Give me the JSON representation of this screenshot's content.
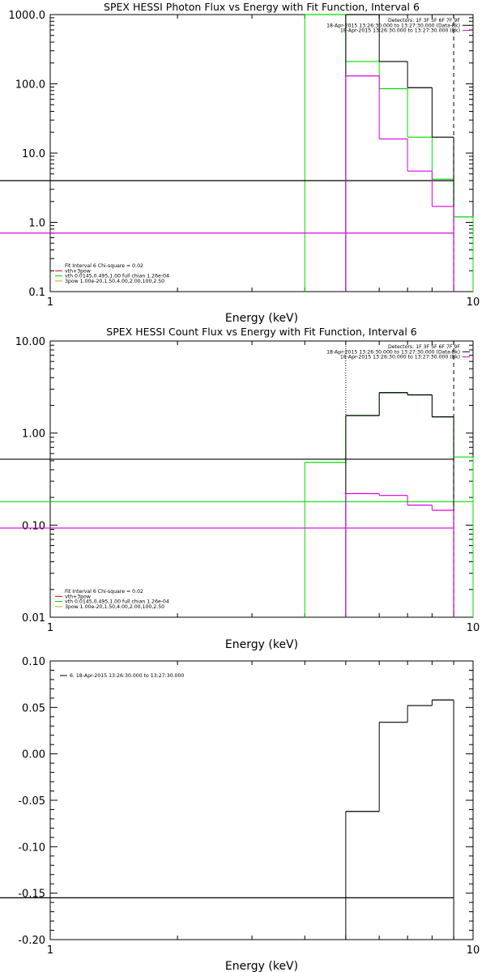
{
  "chart_data": [
    {
      "type": "line",
      "title": "SPEX HESSI Photon Flux vs Energy with Fit Function, Interval 6",
      "xlabel": "Energy (keV)",
      "ylabel": "",
      "xscale": "log",
      "yscale": "log",
      "xlim": [
        1,
        10
      ],
      "ylim": [
        0.1,
        1000
      ],
      "x_tick_labels": [
        "1",
        "10"
      ],
      "y_tick_labels": [
        "0.1",
        "1.0",
        "10.0",
        "100.0",
        "1000.0"
      ],
      "legend_top_right": {
        "lines": [
          "Detectors: 1F 3F 5F 6F 7F 9F",
          "18-Apr-2015 13:26:30.000 to 13:27:30.000 (Data-Bk)",
          "18-Apr-2015 13:26:30.000 to 13:27:30.000 (Bk)"
        ],
        "colors": [
          "#000000",
          "#000000",
          "#cc00cc"
        ]
      },
      "legend_bottom_left": {
        "lines": [
          "Fit Interval 6   Chi-square = 0.02",
          "vth+3pow",
          "vth 0.0145,0.495,1.00  full chian 1.26e-04",
          "3pow 1.00e-20,1.50,4.00,2.00,100,2.50"
        ],
        "colors": [
          "#000000",
          "#cc0000",
          "#00cc00",
          "#ccaa00"
        ]
      },
      "series": [
        {
          "name": "vth 0.0145,0.495,1.00  full chian 1.26e-04",
          "color": "#00dd00",
          "edges": [
            4,
            5,
            6,
            7,
            8,
            9,
            10
          ],
          "values": [
            1000,
            210,
            85,
            17,
            4.2,
            1.2
          ]
        },
        {
          "name": "18-Apr-2015 13:26:30.000 to 13:27:30.000 (Data-Bk)",
          "color": "#000000",
          "edges": [
            5,
            6,
            7,
            8,
            9
          ],
          "values": [
            1000,
            210,
            88,
            17,
            4.0
          ]
        },
        {
          "name": "18-Apr-2015 13:26:30.000 to 13:27:30.000 (Bk)",
          "color": "#dd00dd",
          "edges": [
            5,
            6,
            7,
            8,
            9
          ],
          "values": [
            130,
            16,
            5.5,
            1.7,
            0.7
          ]
        }
      ],
      "vlines": [
        {
          "x": 5.0,
          "color": "#dd00dd",
          "dash": "1,2"
        },
        {
          "x": 9.0,
          "color": "#000000",
          "dash": "5,4"
        }
      ]
    },
    {
      "type": "line",
      "title": "SPEX HESSI Count Flux vs Energy with Fit Function, Interval 6",
      "xlabel": "Energy (keV)",
      "ylabel": "",
      "xscale": "log",
      "yscale": "log",
      "xlim": [
        1,
        10
      ],
      "ylim": [
        0.01,
        10
      ],
      "x_tick_labels": [
        "1",
        "10"
      ],
      "y_tick_labels": [
        "0.01",
        "0.10",
        "1.00",
        "10.00"
      ],
      "legend_top_right": {
        "lines": [
          "Detectors: 1F 3F 5F 6F 7F 9F",
          "18-Apr-2015 13:26:30.000 to 13:27:30.000 (Data-Bk)",
          "18-Apr-2015 13:26:30.000 to 13:27:30.000 (Bk)"
        ],
        "colors": [
          "#000000",
          "#000000",
          "#cc00cc"
        ]
      },
      "legend_bottom_left": {
        "lines": [
          "Fit Interval 6   Chi-square = 0.02",
          "vth+3pow",
          "vth 0.0145,0.495,1.00  full chian 1.26e-04",
          "3pow 1.00e-20,1.50,4.00,2.00,100,2.50"
        ],
        "colors": [
          "#000000",
          "#cc0000",
          "#00cc00",
          "#ccaa00"
        ]
      },
      "series": [
        {
          "name": "vth 0.0145,0.495,1.00  full chian 1.26e-04",
          "color": "#00dd00",
          "edges": [
            4,
            5,
            6,
            7,
            8,
            9,
            10
          ],
          "values": [
            0.48,
            1.55,
            2.75,
            2.6,
            1.5,
            0.55,
            0.18
          ]
        },
        {
          "name": "18-Apr-2015 13:26:30.000 to 13:27:30.000 (Data-Bk)",
          "color": "#000000",
          "edges": [
            5,
            6,
            7,
            8,
            9
          ],
          "values": [
            1.55,
            2.75,
            2.6,
            1.5,
            0.52
          ]
        },
        {
          "name": "18-Apr-2015 13:26:30.000 to 13:27:30.000 (Bk)",
          "color": "#dd00dd",
          "edges": [
            5,
            6,
            7,
            8,
            9
          ],
          "values": [
            0.22,
            0.21,
            0.165,
            0.145,
            0.093
          ]
        }
      ],
      "vlines": [
        {
          "x": 5.0,
          "color": "#000000",
          "dash": "1,2"
        },
        {
          "x": 9.0,
          "color": "#000000",
          "dash": "5,4"
        }
      ]
    },
    {
      "type": "line",
      "title": "",
      "xlabel": "Energy (keV)",
      "ylabel": "",
      "xscale": "log",
      "yscale": "linear",
      "xlim": [
        1,
        10
      ],
      "ylim": [
        -0.2,
        0.1
      ],
      "x_tick_labels": [
        "1",
        "10"
      ],
      "y_ticks": [
        -0.2,
        -0.15,
        -0.1,
        -0.05,
        0.0,
        0.05,
        0.1
      ],
      "y_tick_labels": [
        "-0.20",
        "-0.15",
        "-0.10",
        "-0.05",
        "0.00",
        "0.05",
        "0.10"
      ],
      "legend_top_left": {
        "lines": [
          "6. 18-Apr-2015 13:26:30.000 to 13:27:30.000"
        ],
        "colors": [
          "#000000"
        ]
      },
      "series": [
        {
          "name": "6. 18-Apr-2015 13:26:30.000 to 13:27:30.000",
          "color": "#000000",
          "edges": [
            5,
            6,
            7,
            8,
            9
          ],
          "values": [
            -0.062,
            0.034,
            0.052,
            0.058,
            -0.155
          ]
        }
      ]
    }
  ]
}
